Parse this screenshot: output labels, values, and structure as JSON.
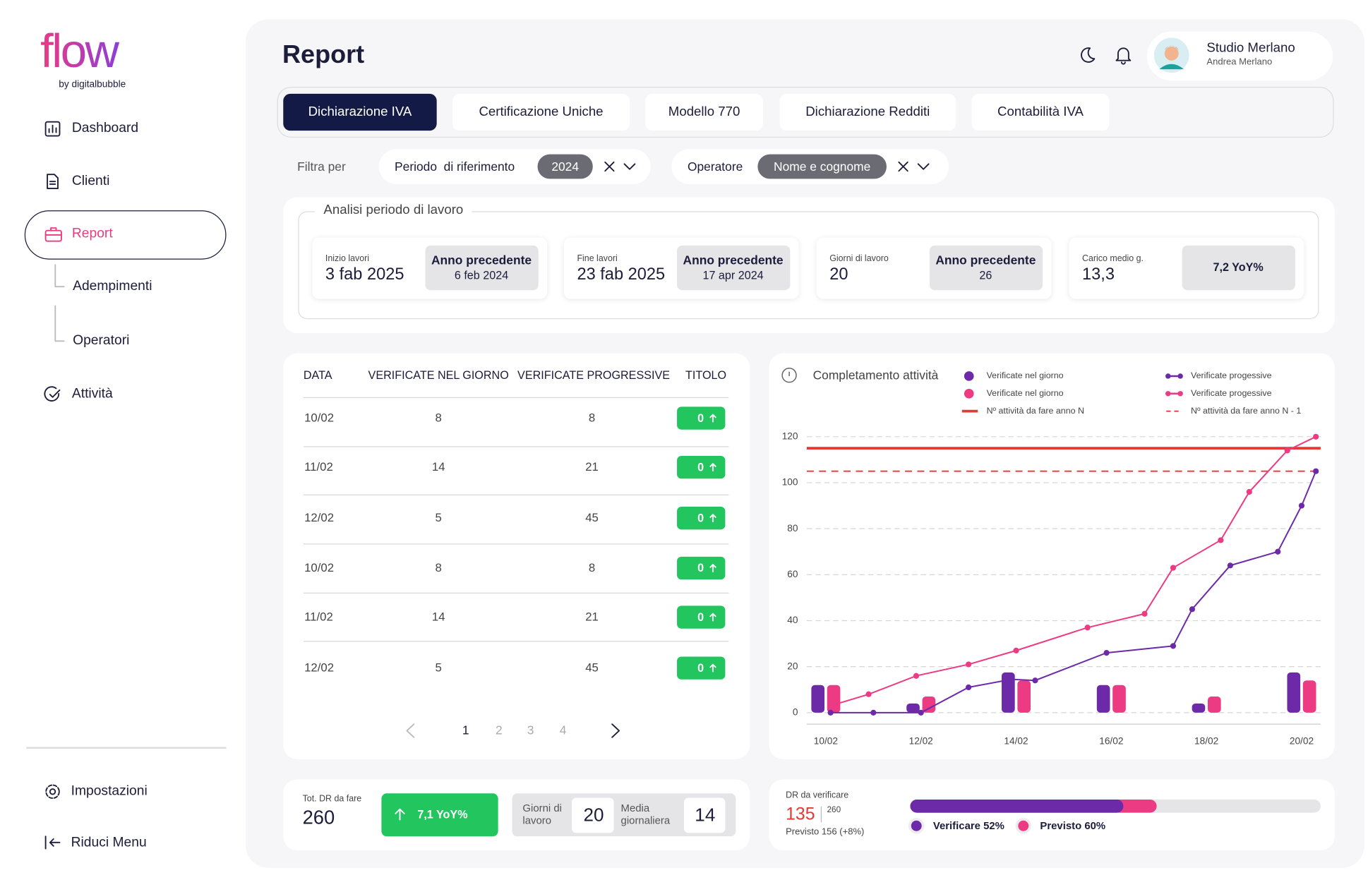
{
  "sidebar": {
    "logo": "flow",
    "logo_sub": "by digitalbubble",
    "menu": [
      "Dashboard",
      "Clienti",
      "Report",
      "Adempimenti",
      "Operatori",
      "Attività"
    ],
    "active": 2,
    "bottom": [
      "Impostazioni",
      "Riduci Menu"
    ]
  },
  "header": {
    "title": "Report",
    "user_name": "Studio Merlano",
    "user_role": "Andrea Merlano"
  },
  "tabs": {
    "items": [
      "Dichiarazione IVA",
      "Certificazione Uniche",
      "Modello 770",
      "Dichiarazione Redditi",
      "Contabilità IVA"
    ],
    "active": 0
  },
  "filters": {
    "label": "Filtra per",
    "items": [
      {
        "label": "Periodo  di riferimento",
        "value": "2024"
      },
      {
        "label": "Operatore",
        "value": "Nome e cognome"
      }
    ]
  },
  "analysis": {
    "title": "Analisi periodo di lavoro",
    "cards": [
      {
        "label": "Inizio lavori",
        "value": "3 fab 2025",
        "compare_label": "Anno precedente",
        "compare_value": "6 feb 2024"
      },
      {
        "label": "Fine lavori",
        "value": "23 fab 2025",
        "compare_label": "Anno precedente",
        "compare_value": "17 apr 2024"
      },
      {
        "label": "Giorni di lavoro",
        "value": "20",
        "compare_label": "Anno precedente",
        "compare_value": "26"
      },
      {
        "label": "Carico medio g.",
        "value": "13,3",
        "compare_value": "7,2 YoY%"
      }
    ]
  },
  "table": {
    "headers": [
      "DATA",
      "VERIFICATE NEL GIORNO",
      "VERIFICATE PROGRESSIVE",
      "TITOLO"
    ],
    "rows": [
      [
        "10/02",
        "8",
        "8",
        "0"
      ],
      [
        "11/02",
        "14",
        "21",
        "0"
      ],
      [
        "12/02",
        "5",
        "45",
        "0"
      ],
      [
        "10/02",
        "8",
        "8",
        "0"
      ],
      [
        "11/02",
        "14",
        "21",
        "0"
      ],
      [
        "12/02",
        "5",
        "45",
        "0"
      ]
    ],
    "pages": [
      "1",
      "2",
      "3",
      "4"
    ],
    "current_page": 0
  },
  "chart": {
    "type": "combo",
    "title": "Completamento attività",
    "xlim": [
      9.6,
      20.4
    ],
    "xticks": [
      {
        "value": 10,
        "label": "10/02"
      },
      {
        "value": 12,
        "label": "12/02"
      },
      {
        "value": 14,
        "label": "14/02"
      },
      {
        "value": 16,
        "label": "16/02"
      },
      {
        "value": 18,
        "label": "18/02"
      },
      {
        "value": 20,
        "label": "20/02"
      }
    ],
    "ylim": [
      -5,
      125
    ],
    "yticks": [
      0,
      20,
      40,
      60,
      80,
      100,
      120
    ],
    "grid": true,
    "bar_series": [
      {
        "name": "Verificate nel giorno",
        "color": "#6d2aa8",
        "x": [
          10,
          12,
          14,
          16,
          18,
          20
        ],
        "values": [
          12,
          4,
          17.5,
          12,
          4,
          17.5
        ]
      },
      {
        "name": "Verificate nel giorno",
        "color": "#ec3a83",
        "x": [
          10,
          12,
          14,
          16,
          18,
          20
        ],
        "values": [
          12,
          7,
          14,
          12,
          7,
          14
        ]
      }
    ],
    "line_series": [
      {
        "name": "Verificate progessive",
        "color": "#6d2aa8",
        "x": [
          10.1,
          11.0,
          12.0,
          13.0,
          13.9,
          14.4,
          15.9,
          17.3,
          17.7,
          18.5,
          19.5,
          20.0,
          20.3
        ],
        "values": [
          0,
          0,
          0,
          11,
          14.5,
          14,
          26,
          29,
          45,
          64,
          70,
          90,
          105
        ]
      },
      {
        "name": "Verificate progessive",
        "color": "#ec3a83",
        "x": [
          10.1,
          10.9,
          11.9,
          13.0,
          14.0,
          15.5,
          16.7,
          17.3,
          18.3,
          18.9,
          19.7,
          20.3
        ],
        "values": [
          3,
          8,
          16,
          21,
          27,
          37,
          43,
          63,
          75,
          96,
          114,
          120
        ]
      }
    ],
    "reference_lines": [
      {
        "name": "Nº attività da fare anno N",
        "color": "#e53935",
        "value": 115,
        "dashed": false
      },
      {
        "name": "Nº attività da fare anno N - 1",
        "color": "#e53935",
        "value": 105,
        "dashed": true
      }
    ]
  },
  "summary": {
    "label": "Tot. DR da fare",
    "value": "260",
    "yoy": "7,1 YoY%",
    "stats": [
      {
        "label": "Giorni di lavoro",
        "value": "20"
      },
      {
        "label": "Media giornaliera",
        "value": "14"
      }
    ]
  },
  "progress": {
    "label": "DR da verificare",
    "value": "135",
    "total": "260",
    "forecast": "Previsto 156 (+8%)",
    "xlim": [
      0,
      100
    ],
    "bars": [
      {
        "name": "Verificare 52%",
        "value": 52,
        "color": "#6d2aa8"
      },
      {
        "name": "Previsto 60%",
        "value": 60,
        "color": "#ec3a83"
      }
    ]
  }
}
